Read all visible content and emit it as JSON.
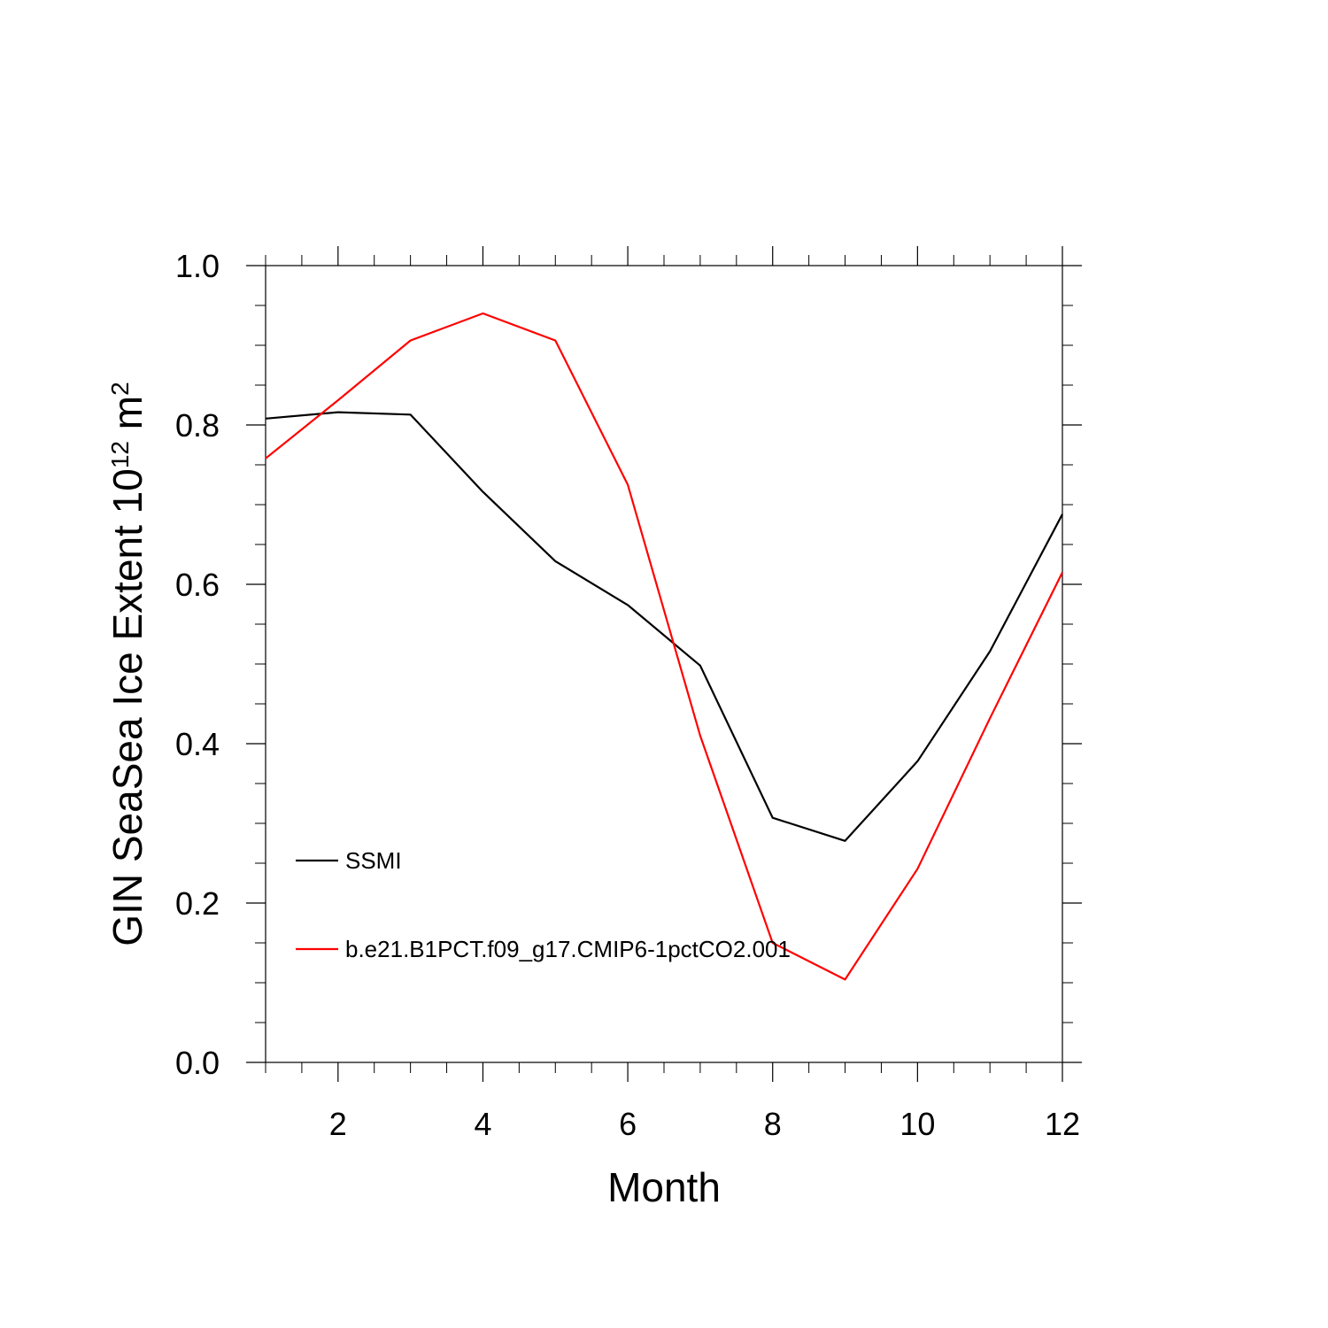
{
  "chart_data": {
    "type": "line",
    "title": "",
    "xlabel": "Month",
    "ylabel_main": "GIN SeaSea Ice Extent 10",
    "ylabel_exponent": "12",
    "ylabel_unit": " m",
    "ylabel_unit_exponent": "2",
    "xlim": [
      1,
      12
    ],
    "ylim": [
      0.0,
      1.0
    ],
    "x_ticks": [
      2,
      4,
      6,
      8,
      10,
      12
    ],
    "x_tick_labels": [
      "2",
      "4",
      "6",
      "8",
      "10",
      "12"
    ],
    "y_ticks": [
      0.0,
      0.2,
      0.4,
      0.6,
      0.8,
      1.0
    ],
    "y_tick_labels": [
      "0.0",
      "0.2",
      "0.4",
      "0.6",
      "0.8",
      "1.0"
    ],
    "grid": false,
    "legend_position": "lower-left",
    "x": [
      1,
      2,
      3,
      4,
      5,
      6,
      7,
      8,
      9,
      10,
      11,
      12
    ],
    "series": [
      {
        "name": "SSMI",
        "color": "#000000",
        "values": [
          0.808,
          0.816,
          0.813,
          0.716,
          0.629,
          0.574,
          0.498,
          0.307,
          0.278,
          0.378,
          0.516,
          0.688
        ]
      },
      {
        "name": "b.e21.B1PCT.f09_g17.CMIP6-1pctCO2.001",
        "color": "#ff0000",
        "values": [
          0.758,
          0.831,
          0.906,
          0.94,
          0.906,
          0.725,
          0.41,
          0.15,
          0.104,
          0.243,
          0.432,
          0.615
        ]
      }
    ]
  }
}
